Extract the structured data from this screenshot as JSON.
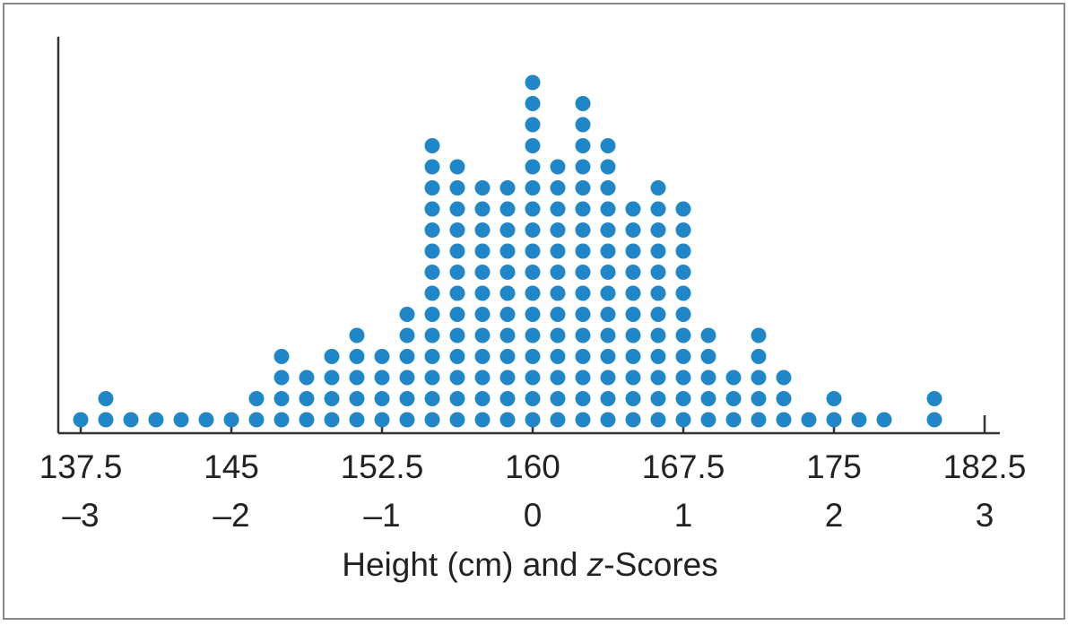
{
  "chart_data": {
    "type": "scatter",
    "subtype": "dot plot",
    "xlabel": "Height (cm) and z-Scores",
    "xlabel_parts": [
      "Height (cm) and ",
      "z",
      "-Scores"
    ],
    "xlim": [
      137.5,
      182.5
    ],
    "ticks": [
      {
        "height": "137.5",
        "z": "–3",
        "value": 137.5
      },
      {
        "height": "145",
        "z": "–2",
        "value": 145
      },
      {
        "height": "152.5",
        "z": "–1",
        "value": 152.5
      },
      {
        "height": "160",
        "z": "0",
        "value": 160
      },
      {
        "height": "167.5",
        "z": "1",
        "value": 167.5
      },
      {
        "height": "175",
        "z": "2",
        "value": 175
      },
      {
        "height": "182.5",
        "z": "3",
        "value": 182.5
      }
    ],
    "z_mean": 160,
    "z_sd": 7.5,
    "grid": false,
    "legend": "none",
    "dot_color": "#1f86c8",
    "columns": [
      {
        "height": 137.5,
        "count": 1
      },
      {
        "height": 138.75,
        "count": 2
      },
      {
        "height": 140.0,
        "count": 1
      },
      {
        "height": 141.25,
        "count": 1
      },
      {
        "height": 142.5,
        "count": 1
      },
      {
        "height": 143.75,
        "count": 1
      },
      {
        "height": 145.0,
        "count": 1
      },
      {
        "height": 146.25,
        "count": 2
      },
      {
        "height": 147.5,
        "count": 4
      },
      {
        "height": 148.75,
        "count": 3
      },
      {
        "height": 150.0,
        "count": 4
      },
      {
        "height": 151.25,
        "count": 5
      },
      {
        "height": 152.5,
        "count": 4
      },
      {
        "height": 153.75,
        "count": 6
      },
      {
        "height": 155.0,
        "count": 14
      },
      {
        "height": 156.25,
        "count": 13
      },
      {
        "height": 157.5,
        "count": 12
      },
      {
        "height": 158.75,
        "count": 12
      },
      {
        "height": 160.0,
        "count": 17
      },
      {
        "height": 161.25,
        "count": 13
      },
      {
        "height": 162.5,
        "count": 16
      },
      {
        "height": 163.75,
        "count": 14
      },
      {
        "height": 165.0,
        "count": 11
      },
      {
        "height": 166.25,
        "count": 12
      },
      {
        "height": 167.5,
        "count": 11
      },
      {
        "height": 168.75,
        "count": 5
      },
      {
        "height": 170.0,
        "count": 3
      },
      {
        "height": 171.25,
        "count": 5
      },
      {
        "height": 172.5,
        "count": 3
      },
      {
        "height": 173.75,
        "count": 1
      },
      {
        "height": 175.0,
        "count": 2
      },
      {
        "height": 176.25,
        "count": 1
      },
      {
        "height": 177.5,
        "count": 1
      },
      {
        "height": 180.0,
        "count": 2
      }
    ]
  }
}
